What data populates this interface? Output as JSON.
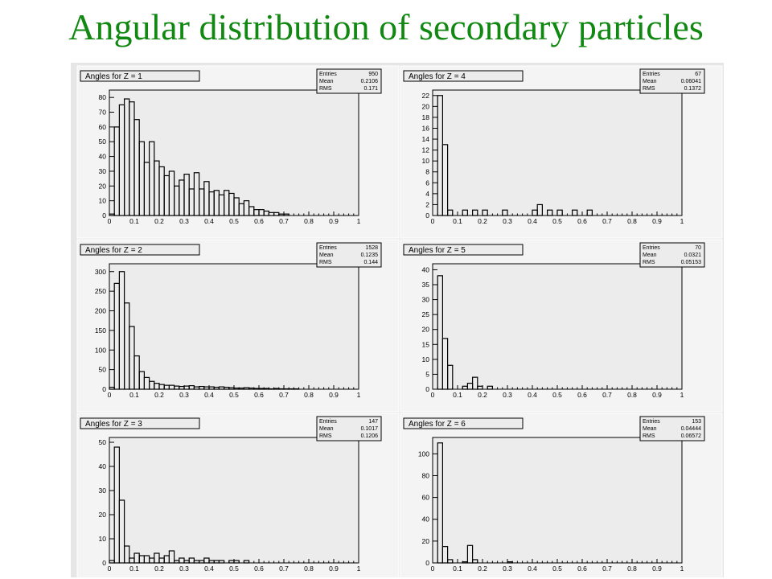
{
  "title": "Angular distribution of secondary particles",
  "colors": {
    "title": "#118811",
    "panel_bg": "#e6e6e6",
    "frame_bg": "#f4f4f4",
    "line": "#000000"
  },
  "stats_labels": {
    "entries": "Entries",
    "mean": "Mean",
    "rms": "RMS"
  },
  "chart_data": [
    {
      "type": "histogram",
      "title": "Angles for Z = 1",
      "entries": "950",
      "mean": "0.2106",
      "rms": "0.171",
      "xlim": [
        0,
        1
      ],
      "ylim": [
        0,
        85
      ],
      "xticks": [
        0,
        0.1,
        0.2,
        0.3,
        0.4,
        0.5,
        0.6,
        0.7,
        0.8,
        0.9,
        1
      ],
      "yticks": [
        0,
        10,
        20,
        30,
        40,
        50,
        60,
        70,
        80
      ],
      "bin_width": 0.02,
      "values": [
        1,
        60,
        75,
        79,
        77,
        65,
        50,
        36,
        50,
        37,
        33,
        27,
        30,
        20,
        24,
        28,
        18,
        29,
        18,
        23,
        16,
        17,
        14,
        17,
        15,
        12,
        8,
        10,
        6,
        4,
        4,
        3,
        2,
        2,
        1,
        1,
        0,
        0,
        0,
        0,
        0,
        0,
        0,
        0,
        0,
        0,
        0,
        0,
        0,
        0
      ]
    },
    {
      "type": "histogram",
      "title": "Angles for Z = 2",
      "entries": "1528",
      "mean": "0.1235",
      "rms": "0.144",
      "xlim": [
        0,
        1
      ],
      "ylim": [
        0,
        320
      ],
      "xticks": [
        0,
        0.1,
        0.2,
        0.3,
        0.4,
        0.5,
        0.6,
        0.7,
        0.8,
        0.9,
        1
      ],
      "yticks": [
        0,
        50,
        100,
        150,
        200,
        250,
        300
      ],
      "bin_width": 0.02,
      "values": [
        5,
        270,
        300,
        220,
        160,
        85,
        45,
        30,
        20,
        15,
        12,
        10,
        10,
        8,
        7,
        8,
        9,
        6,
        7,
        6,
        6,
        5,
        6,
        5,
        4,
        3,
        3,
        4,
        3,
        2,
        2,
        2,
        1,
        2,
        1,
        1,
        1,
        1,
        0,
        0,
        0,
        0,
        0,
        0,
        0,
        0,
        0,
        0,
        0,
        0
      ]
    },
    {
      "type": "histogram",
      "title": "Angles for Z = 3",
      "entries": "147",
      "mean": "0.1017",
      "rms": "0.1206",
      "xlim": [
        0,
        1
      ],
      "ylim": [
        0,
        52
      ],
      "xticks": [
        0,
        0.1,
        0.2,
        0.3,
        0.4,
        0.5,
        0.6,
        0.7,
        0.8,
        0.9,
        1
      ],
      "yticks": [
        0,
        10,
        20,
        30,
        40,
        50
      ],
      "bin_width": 0.02,
      "values": [
        1,
        48,
        26,
        7,
        2,
        4,
        3,
        3,
        2,
        4,
        2,
        3,
        5,
        1,
        2,
        1,
        2,
        1,
        1,
        2,
        1,
        1,
        1,
        0,
        1,
        1,
        0,
        1,
        0,
        0,
        0,
        0,
        0,
        0,
        0,
        0,
        0,
        0,
        0,
        0,
        0,
        0,
        0,
        0,
        0,
        0,
        0,
        0,
        0,
        0
      ]
    },
    {
      "type": "histogram",
      "title": "Angles for Z = 4",
      "entries": "67",
      "mean": "0.06041",
      "rms": "0.1372",
      "xlim": [
        0,
        1
      ],
      "ylim": [
        0,
        23
      ],
      "xticks": [
        0,
        0.1,
        0.2,
        0.3,
        0.4,
        0.5,
        0.6,
        0.7,
        0.8,
        0.9,
        1
      ],
      "yticks": [
        0,
        2,
        4,
        6,
        8,
        10,
        12,
        14,
        16,
        18,
        20,
        22
      ],
      "bin_width": 0.02,
      "values": [
        0,
        22,
        13,
        1,
        0,
        0,
        1,
        0,
        1,
        0,
        1,
        0,
        0,
        0,
        1,
        0,
        0,
        0,
        0,
        0,
        1,
        2,
        0,
        1,
        0,
        1,
        0,
        0,
        1,
        0,
        0,
        1,
        0,
        0,
        0,
        0,
        0,
        0,
        0,
        0,
        0,
        0,
        0,
        0,
        0,
        0,
        0,
        0,
        0,
        0
      ]
    },
    {
      "type": "histogram",
      "title": "Angles for Z = 5",
      "entries": "70",
      "mean": "0.0321",
      "rms": "0.05153",
      "xlim": [
        0,
        1
      ],
      "ylim": [
        0,
        42
      ],
      "xticks": [
        0,
        0.1,
        0.2,
        0.3,
        0.4,
        0.5,
        0.6,
        0.7,
        0.8,
        0.9,
        1
      ],
      "yticks": [
        0,
        5,
        10,
        15,
        20,
        25,
        30,
        35,
        40
      ],
      "bin_width": 0.02,
      "values": [
        0,
        38,
        17,
        8,
        0,
        0,
        1,
        2,
        4,
        1,
        0,
        1,
        0,
        0,
        0,
        0,
        0,
        0,
        0,
        0,
        0,
        0,
        0,
        0,
        0,
        0,
        0,
        0,
        0,
        0,
        0,
        0,
        0,
        0,
        0,
        0,
        0,
        0,
        0,
        0,
        0,
        0,
        0,
        0,
        0,
        0,
        0,
        0,
        0,
        0
      ]
    },
    {
      "type": "histogram",
      "title": "Angles for Z = 6",
      "entries": "153",
      "mean": "0.04444",
      "rms": "0.06572",
      "xlim": [
        0,
        1
      ],
      "ylim": [
        0,
        115
      ],
      "xticks": [
        0,
        0.1,
        0.2,
        0.3,
        0.4,
        0.5,
        0.6,
        0.7,
        0.8,
        0.9,
        1
      ],
      "yticks": [
        0,
        20,
        40,
        60,
        80,
        100
      ],
      "bin_width": 0.02,
      "values": [
        0,
        110,
        15,
        3,
        0,
        0,
        1,
        16,
        3,
        0,
        0,
        0,
        0,
        0,
        0,
        1,
        0,
        0,
        0,
        0,
        0,
        0,
        0,
        0,
        0,
        0,
        0,
        0,
        0,
        0,
        0,
        0,
        0,
        0,
        0,
        0,
        0,
        0,
        0,
        0,
        0,
        0,
        0,
        0,
        0,
        0,
        0,
        0,
        0,
        0
      ]
    }
  ]
}
